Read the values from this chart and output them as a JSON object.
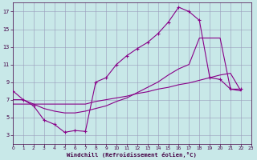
{
  "xlabel": "Windchill (Refroidissement éolien,°C)",
  "bg_color": "#c8e8e8",
  "grid_color": "#9999bb",
  "line_color": "#880088",
  "xlim": [
    0,
    23
  ],
  "ylim": [
    2,
    18
  ],
  "xticks": [
    0,
    1,
    2,
    3,
    4,
    5,
    6,
    7,
    8,
    9,
    10,
    11,
    12,
    13,
    14,
    15,
    16,
    17,
    18,
    19,
    20,
    21,
    22,
    23
  ],
  "yticks": [
    3,
    5,
    7,
    9,
    11,
    13,
    15,
    17
  ],
  "curve1_x": [
    0,
    1,
    2,
    3,
    4,
    5,
    6,
    7,
    8,
    9,
    10,
    11,
    12,
    13,
    14,
    15,
    16,
    17,
    18,
    19,
    20,
    21,
    22
  ],
  "curve1_y": [
    8,
    7,
    6.3,
    4.7,
    4.2,
    3.3,
    3.5,
    3.4,
    9.0,
    9.5,
    11.0,
    12.0,
    12.8,
    13.5,
    14.5,
    15.8,
    17.5,
    17.0,
    16.0,
    9.5,
    9.3,
    8.2,
    8.2
  ],
  "curve2_x": [
    0,
    1,
    2,
    3,
    4,
    5,
    6,
    7,
    8,
    9,
    10,
    11,
    12,
    13,
    14,
    15,
    16,
    17,
    18,
    19,
    20,
    21,
    22
  ],
  "curve2_y": [
    7.0,
    7.0,
    6.5,
    6.0,
    5.7,
    5.5,
    5.5,
    5.7,
    6.0,
    6.3,
    6.8,
    7.2,
    7.8,
    8.4,
    9.0,
    9.8,
    10.5,
    11.0,
    14.0,
    14.0,
    14.0,
    8.2,
    8.0
  ],
  "curve3_x": [
    0,
    1,
    2,
    3,
    4,
    5,
    6,
    7,
    8,
    9,
    10,
    11,
    12,
    13,
    14,
    15,
    16,
    17,
    18,
    19,
    20,
    21,
    22
  ],
  "curve3_y": [
    6.5,
    6.5,
    6.5,
    6.5,
    6.5,
    6.5,
    6.5,
    6.5,
    6.8,
    7.0,
    7.2,
    7.4,
    7.7,
    7.9,
    8.2,
    8.4,
    8.7,
    8.9,
    9.2,
    9.5,
    9.8,
    10.0,
    8.0
  ]
}
